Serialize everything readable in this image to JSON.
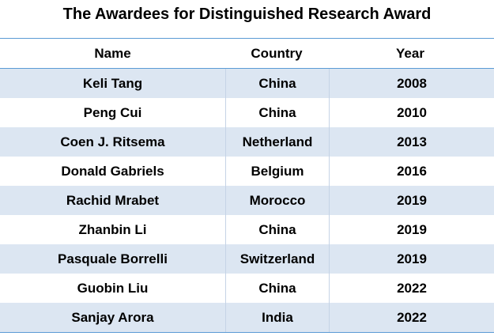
{
  "title": "The Awardees for Distinguished Research Award",
  "columns": {
    "name": "Name",
    "country": "Country",
    "year": "Year"
  },
  "rows": [
    {
      "name": "Keli Tang",
      "country": "China",
      "year": "2008"
    },
    {
      "name": "Peng Cui",
      "country": "China",
      "year": "2010"
    },
    {
      "name": "Coen J. Ritsema",
      "country": "Netherland",
      "year": "2013"
    },
    {
      "name": "Donald Gabriels",
      "country": "Belgium",
      "year": "2016"
    },
    {
      "name": "Rachid Mrabet",
      "country": "Morocco",
      "year": "2019"
    },
    {
      "name": "Zhanbin Li",
      "country": "China",
      "year": "2019"
    },
    {
      "name": "Pasquale Borrelli",
      "country": "Switzerland",
      "year": "2019"
    },
    {
      "name": "Guobin Liu",
      "country": "China",
      "year": "2022"
    },
    {
      "name": "Sanjay Arora",
      "country": "India",
      "year": "2022"
    }
  ],
  "colors": {
    "stripe": "#dce6f2",
    "rule": "#5b9bd5",
    "text": "#000000"
  }
}
